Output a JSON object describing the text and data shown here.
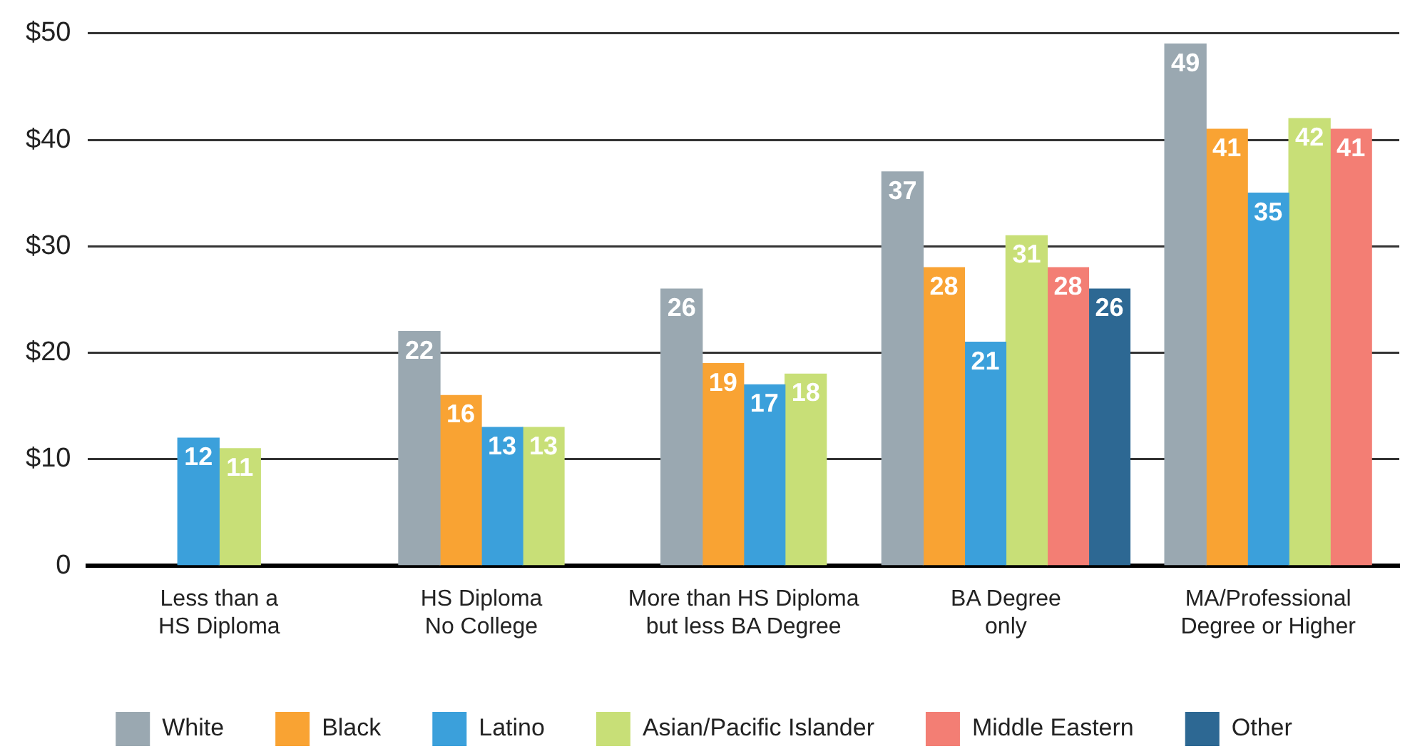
{
  "chart_data": {
    "type": "bar",
    "categories": [
      "Less than a\nHS Diploma",
      "HS Diploma\nNo College",
      "More than HS Diploma\nbut less BA Degree",
      "BA Degree\nonly",
      "MA/Professional\nDegree or Higher"
    ],
    "series": [
      {
        "name": "White",
        "color": "#9aa8b1",
        "values": [
          null,
          22,
          26,
          37,
          49
        ]
      },
      {
        "name": "Black",
        "color": "#f9a333",
        "values": [
          null,
          16,
          19,
          28,
          41
        ]
      },
      {
        "name": "Latino",
        "color": "#3ba0db",
        "values": [
          12,
          13,
          17,
          21,
          35
        ]
      },
      {
        "name": "Asian/Pacific Islander",
        "color": "#c8df77",
        "values": [
          11,
          13,
          18,
          31,
          42
        ]
      },
      {
        "name": "Middle Eastern",
        "color": "#f37e74",
        "values": [
          null,
          null,
          null,
          28,
          41
        ]
      },
      {
        "name": "Other",
        "color": "#2d6893",
        "values": [
          null,
          null,
          null,
          26,
          null
        ]
      }
    ],
    "ylim": [
      0,
      50
    ],
    "yticks": [
      0,
      {
        "value": 10,
        "label": "$10"
      },
      {
        "value": 20,
        "label": "$20"
      },
      {
        "value": 30,
        "label": "$30"
      },
      {
        "value": 40,
        "label": "$40"
      },
      {
        "value": 50,
        "label": "$50"
      }
    ],
    "grid": "y",
    "legend": "bottom",
    "data_labels": true
  }
}
